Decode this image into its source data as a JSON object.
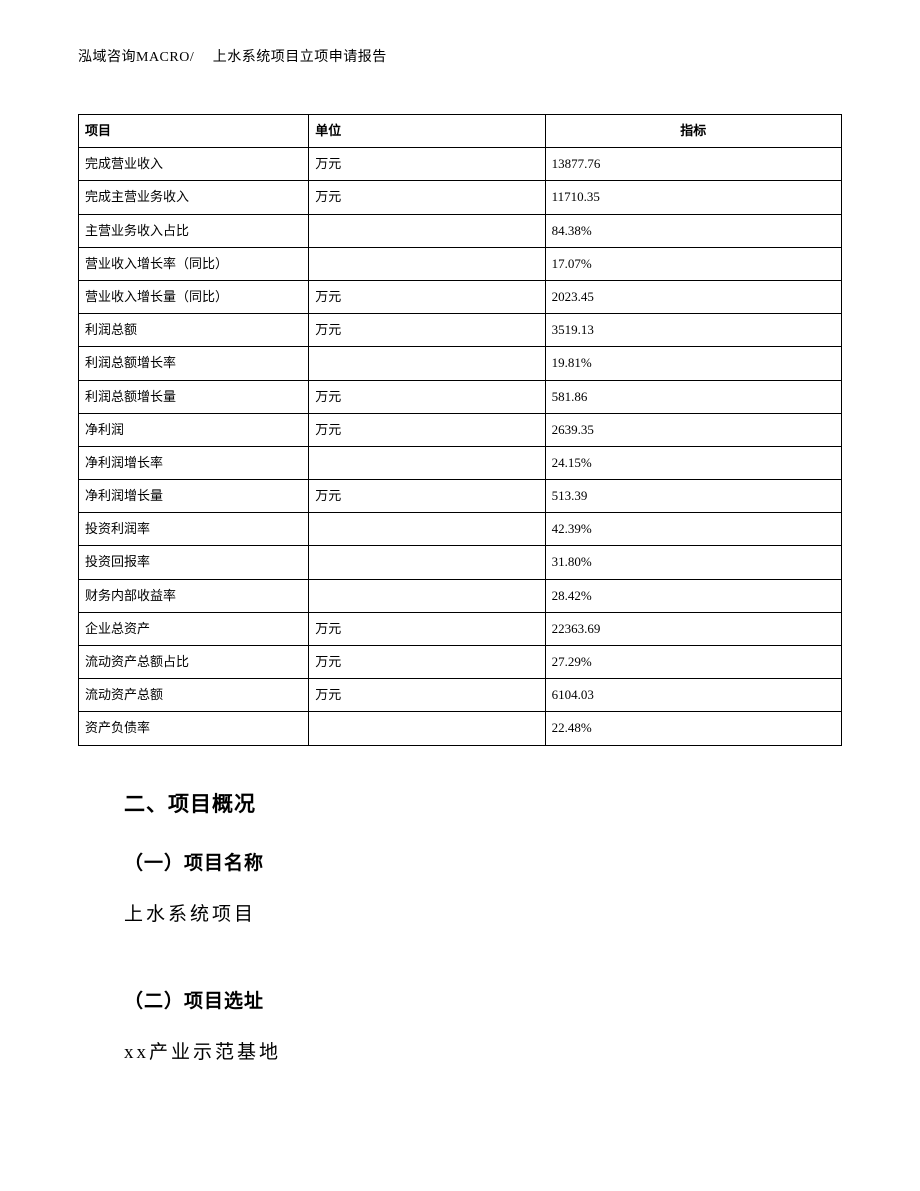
{
  "header": "泓域咨询MACRO/　 上水系统项目立项申请报告",
  "table": {
    "columns": {
      "c1": "项目",
      "c2": "单位",
      "c3": "指标"
    },
    "rows": [
      {
        "c1": "完成营业收入",
        "c2": "万元",
        "c3": "13877.76"
      },
      {
        "c1": "完成主营业务收入",
        "c2": "万元",
        "c3": "11710.35"
      },
      {
        "c1": "主营业务收入占比",
        "c2": "",
        "c3": "84.38%"
      },
      {
        "c1": "营业收入增长率（同比）",
        "c2": "",
        "c3": "17.07%"
      },
      {
        "c1": "营业收入增长量（同比）",
        "c2": "万元",
        "c3": "2023.45"
      },
      {
        "c1": "利润总额",
        "c2": "万元",
        "c3": "3519.13"
      },
      {
        "c1": "利润总额增长率",
        "c2": "",
        "c3": "19.81%"
      },
      {
        "c1": "利润总额增长量",
        "c2": "万元",
        "c3": "581.86"
      },
      {
        "c1": "净利润",
        "c2": "万元",
        "c3": "2639.35"
      },
      {
        "c1": "净利润增长率",
        "c2": "",
        "c3": "24.15%"
      },
      {
        "c1": "净利润增长量",
        "c2": "万元",
        "c3": "513.39"
      },
      {
        "c1": "投资利润率",
        "c2": "",
        "c3": "42.39%"
      },
      {
        "c1": "投资回报率",
        "c2": "",
        "c3": "31.80%"
      },
      {
        "c1": "财务内部收益率",
        "c2": "",
        "c3": "28.42%"
      },
      {
        "c1": "企业总资产",
        "c2": "万元",
        "c3": "22363.69"
      },
      {
        "c1": "流动资产总额占比",
        "c2": "万元",
        "c3": "27.29%"
      },
      {
        "c1": "流动资产总额",
        "c2": "万元",
        "c3": "6104.03"
      },
      {
        "c1": "资产负债率",
        "c2": "",
        "c3": "22.48%"
      }
    ]
  },
  "sections": {
    "h2": "二、项目概况",
    "s1_title": "（一）项目名称",
    "s1_body": "上水系统项目",
    "s2_title": "（二）项目选址",
    "s2_body": "xx产业示范基地"
  }
}
